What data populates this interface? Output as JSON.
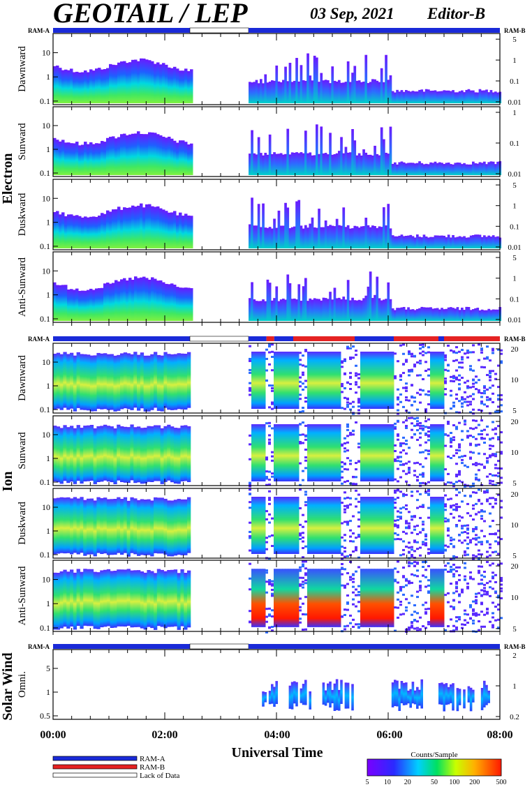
{
  "header": {
    "title": "GEOTAIL / LEP",
    "date": "03 Sep, 2021",
    "editor": "Editor-B"
  },
  "groups": [
    {
      "label": "Electron"
    },
    {
      "label": "Ion"
    },
    {
      "label": "Solar Wind"
    }
  ],
  "ram_labels": {
    "a": "RAM-A",
    "b": "RAM-B"
  },
  "time_axis": {
    "ticks": [
      "00:00",
      "02:00",
      "04:00",
      "06:00",
      "08:00"
    ],
    "label": "Universal Time"
  },
  "legend": {
    "items": [
      "RAM-A",
      "RAM-B",
      "Lack of Data"
    ],
    "colors": [
      "#1a2ad8",
      "#e52222",
      "#ffffff"
    ]
  },
  "colorbar": {
    "title": "Counts/Sample",
    "ticks": [
      "5",
      "10",
      "20",
      "50",
      "100",
      "200",
      "500"
    ]
  },
  "chart_data": {
    "type": "heatmap",
    "x_range_hours": [
      0,
      8
    ],
    "data_gap_hours": [
      2.45,
      3.5
    ],
    "panels": [
      {
        "group": "Electron",
        "ylabel": "Dawnward",
        "left_ticks": [
          "10",
          "1",
          "0.1"
        ],
        "right_ticks": [
          "5",
          "1",
          "0.1",
          "0.01"
        ]
      },
      {
        "group": "Electron",
        "ylabel": "Sunward",
        "left_ticks": [
          "10",
          "1",
          "0.1"
        ],
        "right_ticks": [
          "1",
          "0.1",
          "0.01"
        ]
      },
      {
        "group": "Electron",
        "ylabel": "Duskward",
        "left_ticks": [
          "10",
          "1",
          "0.1"
        ],
        "right_ticks": [
          "5",
          "1",
          "0.1",
          "0.01"
        ]
      },
      {
        "group": "Electron",
        "ylabel": "Anti-Sunward",
        "left_ticks": [
          "10",
          "1",
          "0.1"
        ],
        "right_ticks": [
          "5",
          "1",
          "0.1",
          "0.01"
        ]
      },
      {
        "group": "Ion",
        "ylabel": "Dawnward",
        "left_ticks": [
          "10",
          "1",
          "0.1"
        ],
        "right_ticks": [
          "20",
          "10",
          "5"
        ]
      },
      {
        "group": "Ion",
        "ylabel": "Sunward",
        "left_ticks": [
          "10",
          "1",
          "0.1"
        ],
        "right_ticks": [
          "20",
          "10",
          "5"
        ]
      },
      {
        "group": "Ion",
        "ylabel": "Duskward",
        "left_ticks": [
          "10",
          "1",
          "0.1"
        ],
        "right_ticks": [
          "20",
          "10",
          "5"
        ]
      },
      {
        "group": "Ion",
        "ylabel": "Anti-Sunward",
        "left_ticks": [
          "10",
          "1",
          "0.1"
        ],
        "right_ticks": [
          "20",
          "10",
          "5"
        ]
      },
      {
        "group": "Solar Wind",
        "ylabel": "Omni.",
        "left_ticks": [
          "5",
          "1",
          "0.5"
        ],
        "right_ticks": [
          "2",
          "1",
          "0.2"
        ]
      }
    ]
  }
}
